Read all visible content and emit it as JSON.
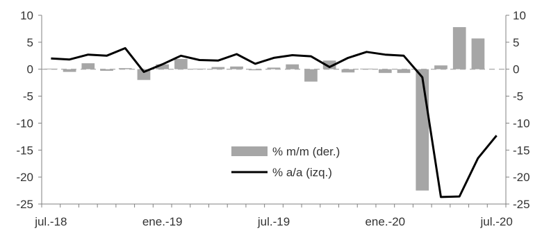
{
  "chart_data": {
    "type": "bar+line",
    "categories": [
      "jul.-18",
      "ago.-18",
      "sep.-18",
      "oct.-18",
      "nov.-18",
      "dic.-18",
      "ene.-19",
      "feb.-19",
      "mar.-19",
      "abr.-19",
      "may.-19",
      "jun.-19",
      "jul.-19",
      "ago.-19",
      "sep.-19",
      "oct.-19",
      "nov.-19",
      "dic.-19",
      "ene.-20",
      "feb.-20",
      "mar.-20",
      "abr.-20",
      "may.-20",
      "jun.-20",
      "jul.-20"
    ],
    "x_tick_labels": [
      "jul.-18",
      "ene.-19",
      "jul.-19",
      "ene.-20",
      "jul.-20"
    ],
    "x_tick_indices": [
      0,
      6,
      12,
      18,
      24
    ],
    "series": [
      {
        "name": "% m/m (der.)",
        "type": "bar",
        "axis": "right",
        "color": "#a6a6a6",
        "values": [
          0.1,
          -0.5,
          1.1,
          -0.3,
          0.2,
          -2.0,
          0.9,
          1.9,
          0.1,
          0.4,
          0.5,
          -0.2,
          0.3,
          0.9,
          -2.3,
          1.6,
          -0.6,
          0.1,
          -0.7,
          -0.7,
          -22.5,
          0.7,
          7.8,
          5.7,
          0.0
        ]
      },
      {
        "name": "% a/a (izq.)",
        "type": "line",
        "axis": "left",
        "color": "#000000",
        "values": [
          2.0,
          1.8,
          2.7,
          2.5,
          3.9,
          -0.5,
          0.9,
          2.5,
          1.7,
          1.6,
          2.8,
          1.0,
          2.1,
          2.6,
          2.4,
          0.4,
          2.1,
          3.2,
          2.7,
          2.5,
          -1.5,
          -23.7,
          -23.6,
          -16.5,
          -12.3
        ]
      }
    ],
    "y_left": {
      "min": -25,
      "max": 10,
      "ticks": [
        10,
        5,
        0,
        -5,
        -10,
        -15,
        -20,
        -25
      ]
    },
    "y_right": {
      "min": -25,
      "max": 10,
      "ticks": [
        10,
        5,
        0,
        -5,
        -10,
        -15,
        -20,
        -25
      ]
    },
    "zero_line": {
      "style": "dashed",
      "color": "#a6a6a6"
    },
    "grid": false,
    "legend_position": "bottom-center"
  }
}
